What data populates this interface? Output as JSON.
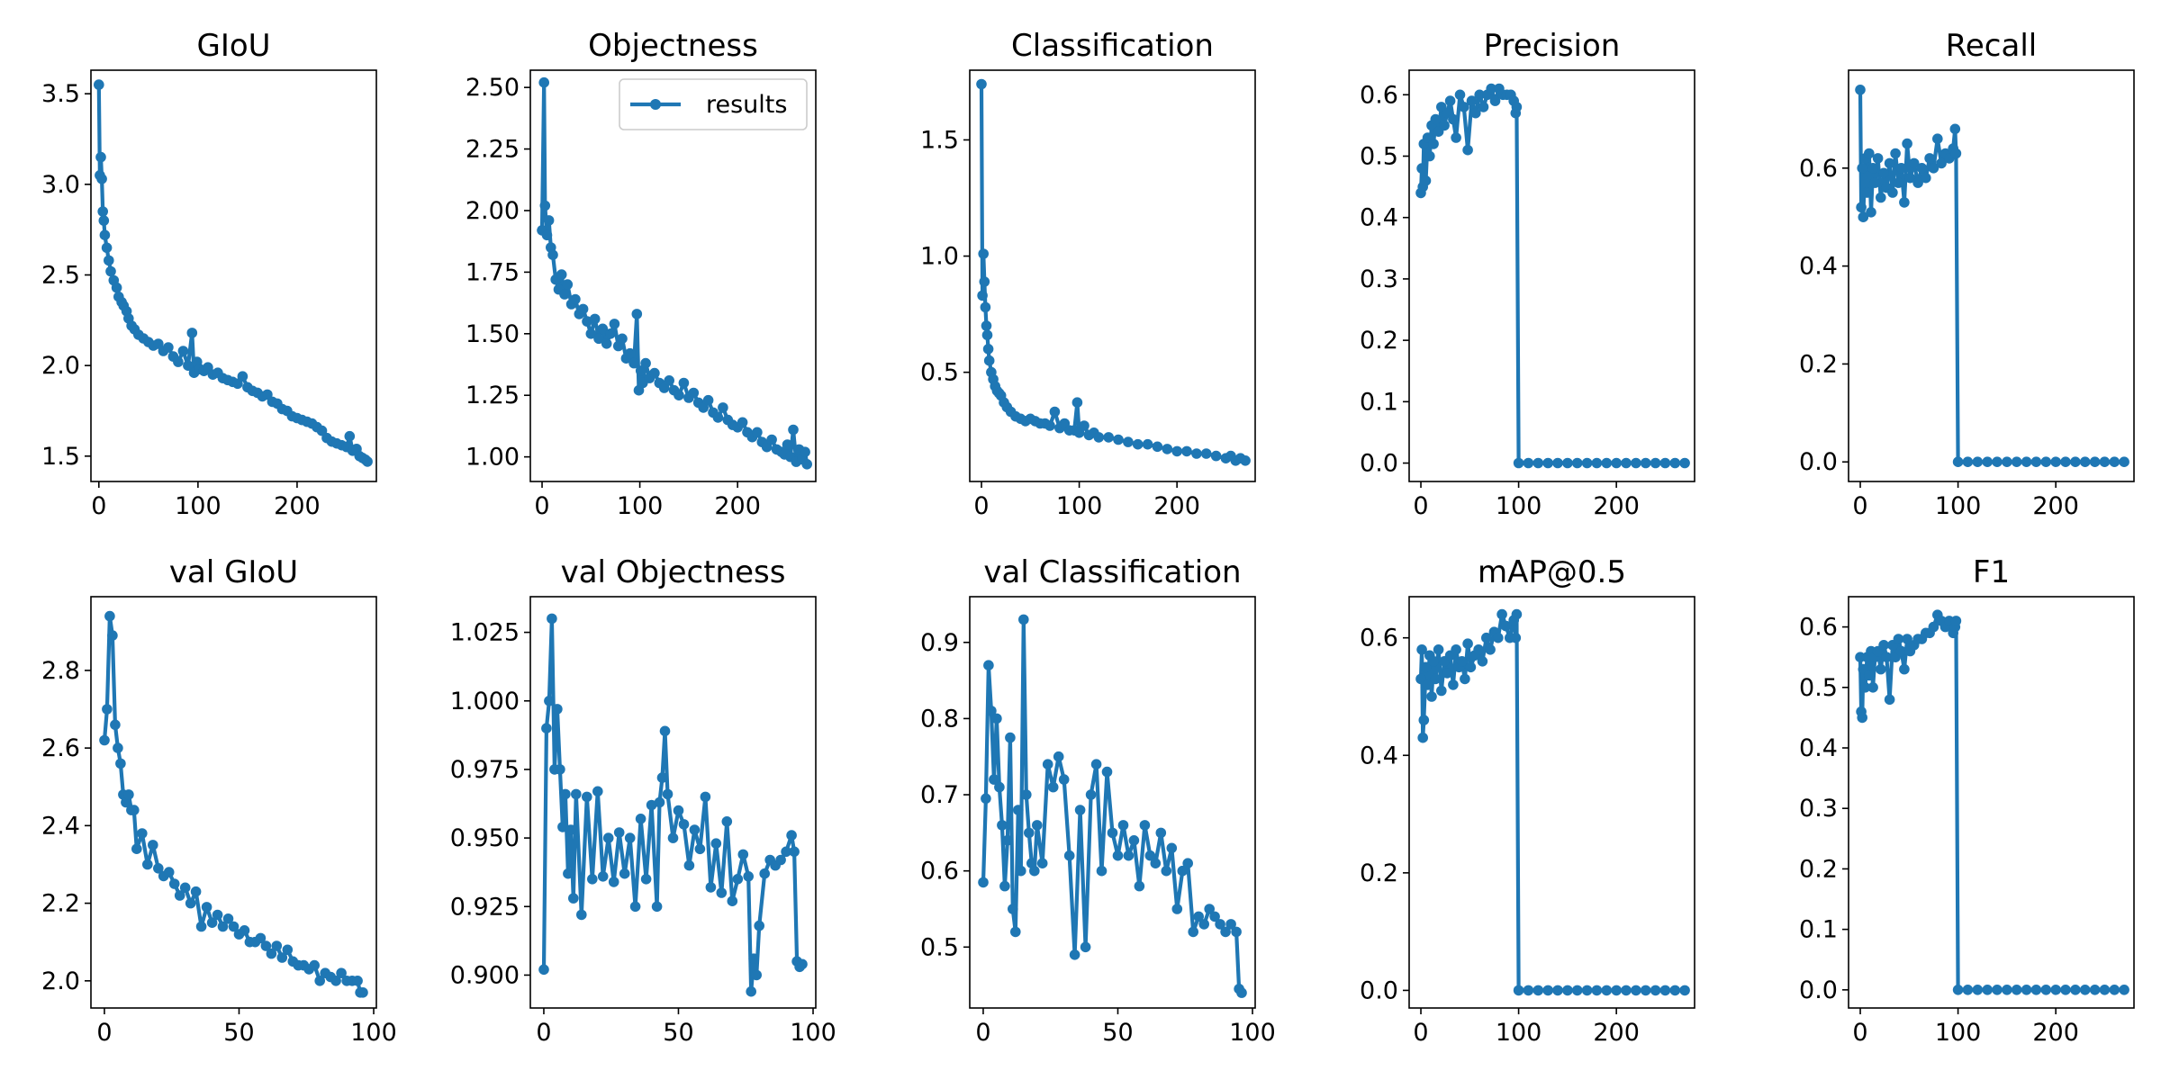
{
  "colors": {
    "series": "#1f77b4",
    "axes": "#000000",
    "legend_edge": "#cccccc"
  },
  "chart_data": [
    {
      "type": "line",
      "title": "GIoU",
      "series_name": "results",
      "xlim": [
        -8,
        280
      ],
      "ylim": [
        1.36,
        3.63
      ],
      "xticks": [
        0,
        100,
        200
      ],
      "yticks": [
        1.5,
        2.0,
        2.5,
        3.0,
        3.5
      ],
      "x": [
        0,
        1,
        2,
        3,
        4,
        5,
        6,
        8,
        10,
        12,
        15,
        18,
        20,
        23,
        25,
        28,
        30,
        33,
        36,
        40,
        45,
        50,
        55,
        60,
        65,
        70,
        75,
        80,
        85,
        90,
        94,
        96,
        99,
        102,
        106,
        110,
        115,
        120,
        125,
        130,
        135,
        140,
        145,
        150,
        155,
        160,
        165,
        170,
        175,
        180,
        185,
        190,
        195,
        200,
        205,
        210,
        215,
        220,
        225,
        230,
        235,
        240,
        245,
        250,
        253,
        256,
        260,
        263,
        266,
        269,
        271
      ],
      "values": [
        3.55,
        3.05,
        3.15,
        3.03,
        2.85,
        2.8,
        2.72,
        2.65,
        2.58,
        2.52,
        2.47,
        2.43,
        2.38,
        2.35,
        2.33,
        2.3,
        2.26,
        2.22,
        2.2,
        2.17,
        2.15,
        2.13,
        2.11,
        2.12,
        2.08,
        2.1,
        2.05,
        2.02,
        2.08,
        2.0,
        2.18,
        1.96,
        2.02,
        1.98,
        1.97,
        1.99,
        1.95,
        1.96,
        1.93,
        1.92,
        1.91,
        1.9,
        1.94,
        1.88,
        1.86,
        1.85,
        1.83,
        1.84,
        1.8,
        1.79,
        1.76,
        1.75,
        1.72,
        1.71,
        1.7,
        1.69,
        1.68,
        1.66,
        1.64,
        1.6,
        1.58,
        1.57,
        1.56,
        1.55,
        1.61,
        1.53,
        1.54,
        1.5,
        1.49,
        1.48,
        1.47
      ]
    },
    {
      "type": "line",
      "title": "Objectness",
      "series_name": "results",
      "xlim": [
        -12,
        280
      ],
      "ylim": [
        0.9,
        2.57
      ],
      "xticks": [
        0,
        100,
        200
      ],
      "yticks": [
        1.0,
        1.25,
        1.5,
        1.75,
        2.0,
        2.25,
        2.5
      ],
      "x": [
        0,
        2,
        3,
        5,
        7,
        9,
        11,
        14,
        17,
        20,
        23,
        26,
        30,
        34,
        38,
        42,
        46,
        50,
        54,
        58,
        62,
        66,
        70,
        74,
        78,
        82,
        86,
        90,
        94,
        97,
        99,
        101,
        103,
        106,
        110,
        115,
        120,
        125,
        130,
        135,
        140,
        145,
        150,
        155,
        160,
        165,
        170,
        175,
        180,
        185,
        190,
        195,
        200,
        205,
        210,
        215,
        220,
        225,
        230,
        235,
        240,
        245,
        248,
        251,
        254,
        257,
        260,
        263,
        266,
        269,
        271
      ],
      "values": [
        1.92,
        2.52,
        2.02,
        1.9,
        1.96,
        1.85,
        1.82,
        1.72,
        1.68,
        1.74,
        1.66,
        1.7,
        1.62,
        1.64,
        1.58,
        1.6,
        1.55,
        1.5,
        1.56,
        1.48,
        1.52,
        1.46,
        1.5,
        1.54,
        1.45,
        1.48,
        1.4,
        1.42,
        1.38,
        1.58,
        1.27,
        1.35,
        1.3,
        1.38,
        1.32,
        1.34,
        1.3,
        1.28,
        1.31,
        1.27,
        1.25,
        1.3,
        1.24,
        1.26,
        1.22,
        1.2,
        1.23,
        1.18,
        1.16,
        1.2,
        1.15,
        1.13,
        1.12,
        1.14,
        1.1,
        1.08,
        1.1,
        1.06,
        1.04,
        1.07,
        1.03,
        1.02,
        1.01,
        1.05,
        1.0,
        1.11,
        0.98,
        1.03,
        0.99,
        1.02,
        0.97
      ]
    },
    {
      "type": "line",
      "title": "Classification",
      "series_name": "results",
      "xlim": [
        -12,
        280
      ],
      "ylim": [
        0.03,
        1.8
      ],
      "xticks": [
        0,
        100,
        200
      ],
      "yticks": [
        0.5,
        1.0,
        1.5
      ],
      "x": [
        0,
        1,
        2,
        3,
        4,
        5,
        6,
        7,
        8,
        10,
        12,
        14,
        16,
        18,
        20,
        23,
        26,
        30,
        35,
        40,
        45,
        50,
        55,
        60,
        65,
        70,
        75,
        80,
        85,
        90,
        95,
        98,
        100,
        105,
        110,
        115,
        120,
        130,
        140,
        150,
        160,
        170,
        180,
        190,
        200,
        210,
        220,
        230,
        240,
        250,
        255,
        260,
        265,
        270
      ],
      "values": [
        1.74,
        0.83,
        1.01,
        0.89,
        0.78,
        0.7,
        0.66,
        0.6,
        0.55,
        0.5,
        0.47,
        0.44,
        0.42,
        0.41,
        0.4,
        0.37,
        0.35,
        0.33,
        0.31,
        0.3,
        0.29,
        0.3,
        0.29,
        0.28,
        0.28,
        0.27,
        0.33,
        0.26,
        0.28,
        0.25,
        0.25,
        0.37,
        0.24,
        0.27,
        0.23,
        0.24,
        0.22,
        0.22,
        0.21,
        0.2,
        0.19,
        0.19,
        0.18,
        0.17,
        0.16,
        0.16,
        0.15,
        0.15,
        0.14,
        0.13,
        0.14,
        0.12,
        0.13,
        0.12
      ]
    },
    {
      "type": "line",
      "title": "Precision",
      "series_name": "results",
      "xlim": [
        -12,
        280
      ],
      "ylim": [
        -0.03,
        0.64
      ],
      "xticks": [
        0,
        100,
        200
      ],
      "yticks": [
        0.0,
        0.1,
        0.2,
        0.3,
        0.4,
        0.5,
        0.6
      ],
      "x": [
        0,
        1,
        2,
        3,
        5,
        7,
        9,
        11,
        13,
        15,
        18,
        21,
        24,
        27,
        30,
        33,
        36,
        40,
        44,
        48,
        52,
        56,
        60,
        64,
        68,
        72,
        76,
        80,
        84,
        88,
        92,
        95,
        97,
        98,
        100,
        110,
        120,
        130,
        140,
        150,
        160,
        170,
        180,
        190,
        200,
        210,
        220,
        230,
        240,
        250,
        260,
        270
      ],
      "values": [
        0.44,
        0.48,
        0.45,
        0.52,
        0.46,
        0.53,
        0.5,
        0.55,
        0.52,
        0.56,
        0.54,
        0.58,
        0.55,
        0.57,
        0.59,
        0.56,
        0.53,
        0.6,
        0.58,
        0.51,
        0.59,
        0.57,
        0.6,
        0.58,
        0.6,
        0.61,
        0.59,
        0.61,
        0.6,
        0.6,
        0.6,
        0.59,
        0.57,
        0.58,
        0.0,
        0.0,
        0.0,
        0.0,
        0.0,
        0.0,
        0.0,
        0.0,
        0.0,
        0.0,
        0.0,
        0.0,
        0.0,
        0.0,
        0.0,
        0.0,
        0.0,
        0.0
      ]
    },
    {
      "type": "line",
      "title": "Recall",
      "series_name": "results",
      "xlim": [
        -12,
        280
      ],
      "ylim": [
        -0.04,
        0.8
      ],
      "xticks": [
        0,
        100,
        200
      ],
      "yticks": [
        0.0,
        0.2,
        0.4,
        0.6
      ],
      "x": [
        0,
        1,
        2,
        3,
        5,
        7,
        9,
        11,
        13,
        15,
        18,
        21,
        24,
        27,
        30,
        33,
        36,
        39,
        42,
        45,
        48,
        51,
        55,
        59,
        63,
        67,
        71,
        75,
        79,
        83,
        87,
        91,
        95,
        97,
        98,
        100,
        110,
        120,
        130,
        140,
        150,
        160,
        170,
        180,
        190,
        200,
        210,
        220,
        230,
        240,
        250,
        260,
        270
      ],
      "values": [
        0.76,
        0.52,
        0.6,
        0.5,
        0.62,
        0.55,
        0.63,
        0.51,
        0.6,
        0.57,
        0.62,
        0.54,
        0.59,
        0.56,
        0.61,
        0.55,
        0.63,
        0.57,
        0.6,
        0.53,
        0.65,
        0.58,
        0.61,
        0.57,
        0.6,
        0.58,
        0.62,
        0.6,
        0.66,
        0.61,
        0.63,
        0.62,
        0.64,
        0.68,
        0.63,
        0.0,
        0.0,
        0.0,
        0.0,
        0.0,
        0.0,
        0.0,
        0.0,
        0.0,
        0.0,
        0.0,
        0.0,
        0.0,
        0.0,
        0.0,
        0.0,
        0.0,
        0.0
      ]
    },
    {
      "type": "line",
      "title": "val GIoU",
      "series_name": "results",
      "xlim": [
        -5,
        101
      ],
      "ylim": [
        1.93,
        2.99
      ],
      "xticks": [
        0,
        50,
        100
      ],
      "yticks": [
        2.0,
        2.2,
        2.4,
        2.6,
        2.8
      ],
      "x": [
        0,
        1,
        2,
        3,
        4,
        5,
        6,
        7,
        8,
        9,
        10,
        11,
        12,
        14,
        16,
        18,
        20,
        22,
        24,
        26,
        28,
        30,
        32,
        34,
        36,
        38,
        40,
        42,
        44,
        46,
        48,
        50,
        52,
        54,
        56,
        58,
        60,
        62,
        64,
        66,
        68,
        70,
        72,
        74,
        76,
        78,
        80,
        82,
        84,
        86,
        88,
        90,
        92,
        94,
        95,
        96
      ],
      "values": [
        2.62,
        2.7,
        2.94,
        2.89,
        2.66,
        2.6,
        2.56,
        2.48,
        2.46,
        2.48,
        2.44,
        2.44,
        2.34,
        2.38,
        2.3,
        2.35,
        2.29,
        2.27,
        2.28,
        2.25,
        2.22,
        2.24,
        2.2,
        2.23,
        2.14,
        2.19,
        2.15,
        2.17,
        2.14,
        2.16,
        2.14,
        2.12,
        2.13,
        2.1,
        2.1,
        2.11,
        2.09,
        2.07,
        2.09,
        2.06,
        2.08,
        2.05,
        2.04,
        2.04,
        2.03,
        2.04,
        2.0,
        2.02,
        2.01,
        2.0,
        2.02,
        2.0,
        2.0,
        2.0,
        1.97,
        1.97
      ]
    },
    {
      "type": "line",
      "title": "val Objectness",
      "series_name": "results",
      "xlim": [
        -5,
        101
      ],
      "ylim": [
        0.888,
        1.038
      ],
      "xticks": [
        0,
        50,
        100
      ],
      "yticks": [
        0.9,
        0.925,
        0.95,
        0.975,
        1.0,
        1.025
      ],
      "x": [
        0,
        1,
        2,
        3,
        4,
        5,
        6,
        7,
        8,
        9,
        10,
        11,
        12,
        14,
        16,
        18,
        20,
        22,
        24,
        26,
        28,
        30,
        32,
        34,
        36,
        38,
        40,
        42,
        43,
        44,
        45,
        46,
        48,
        50,
        52,
        54,
        56,
        58,
        60,
        62,
        64,
        66,
        68,
        70,
        72,
        74,
        76,
        77,
        78,
        79,
        80,
        82,
        84,
        86,
        88,
        90,
        92,
        93,
        94,
        95,
        96
      ],
      "values": [
        0.902,
        0.99,
        1.0,
        1.03,
        0.975,
        0.997,
        0.975,
        0.954,
        0.966,
        0.937,
        0.953,
        0.928,
        0.966,
        0.922,
        0.965,
        0.935,
        0.967,
        0.936,
        0.95,
        0.934,
        0.952,
        0.937,
        0.95,
        0.925,
        0.957,
        0.935,
        0.962,
        0.925,
        0.963,
        0.972,
        0.989,
        0.966,
        0.95,
        0.96,
        0.955,
        0.94,
        0.953,
        0.946,
        0.965,
        0.932,
        0.948,
        0.93,
        0.956,
        0.927,
        0.935,
        0.944,
        0.936,
        0.894,
        0.906,
        0.9,
        0.918,
        0.937,
        0.942,
        0.94,
        0.942,
        0.945,
        0.951,
        0.945,
        0.905,
        0.903,
        0.904
      ]
    },
    {
      "type": "line",
      "title": "val Classification",
      "series_name": "results",
      "xlim": [
        -5,
        101
      ],
      "ylim": [
        0.42,
        0.96
      ],
      "xticks": [
        0,
        50,
        100
      ],
      "yticks": [
        0.5,
        0.6,
        0.7,
        0.8,
        0.9
      ],
      "x": [
        0,
        1,
        2,
        3,
        4,
        5,
        6,
        7,
        8,
        9,
        10,
        11,
        12,
        13,
        14,
        15,
        16,
        17,
        18,
        19,
        20,
        22,
        24,
        26,
        28,
        30,
        32,
        34,
        36,
        38,
        40,
        42,
        44,
        46,
        48,
        50,
        52,
        54,
        56,
        58,
        60,
        62,
        64,
        66,
        68,
        70,
        72,
        74,
        76,
        78,
        80,
        82,
        84,
        86,
        88,
        90,
        92,
        94,
        95,
        96
      ],
      "values": [
        0.585,
        0.695,
        0.87,
        0.81,
        0.72,
        0.8,
        0.71,
        0.66,
        0.58,
        0.64,
        0.775,
        0.55,
        0.52,
        0.68,
        0.6,
        0.93,
        0.7,
        0.65,
        0.61,
        0.6,
        0.66,
        0.61,
        0.74,
        0.71,
        0.75,
        0.72,
        0.62,
        0.49,
        0.68,
        0.5,
        0.7,
        0.74,
        0.6,
        0.73,
        0.65,
        0.62,
        0.66,
        0.62,
        0.64,
        0.58,
        0.66,
        0.62,
        0.61,
        0.65,
        0.6,
        0.63,
        0.55,
        0.6,
        0.61,
        0.52,
        0.54,
        0.53,
        0.55,
        0.54,
        0.53,
        0.52,
        0.53,
        0.52,
        0.445,
        0.44
      ]
    },
    {
      "type": "line",
      "title": "mAP@0.5",
      "series_name": "results",
      "xlim": [
        -12,
        280
      ],
      "ylim": [
        -0.03,
        0.67
      ],
      "xticks": [
        0,
        100,
        200
      ],
      "yticks": [
        0.0,
        0.2,
        0.4,
        0.6
      ],
      "x": [
        0,
        1,
        2,
        3,
        5,
        7,
        9,
        11,
        13,
        15,
        18,
        21,
        24,
        27,
        30,
        33,
        36,
        39,
        42,
        45,
        48,
        51,
        55,
        59,
        63,
        67,
        71,
        75,
        79,
        83,
        87,
        91,
        95,
        97,
        98,
        100,
        110,
        120,
        130,
        140,
        150,
        160,
        170,
        180,
        190,
        200,
        210,
        220,
        230,
        240,
        250,
        260,
        270
      ],
      "values": [
        0.53,
        0.58,
        0.43,
        0.46,
        0.55,
        0.52,
        0.57,
        0.5,
        0.56,
        0.53,
        0.58,
        0.51,
        0.56,
        0.54,
        0.57,
        0.52,
        0.58,
        0.55,
        0.56,
        0.53,
        0.59,
        0.55,
        0.57,
        0.58,
        0.56,
        0.6,
        0.58,
        0.61,
        0.6,
        0.64,
        0.62,
        0.6,
        0.63,
        0.6,
        0.64,
        0.0,
        0.0,
        0.0,
        0.0,
        0.0,
        0.0,
        0.0,
        0.0,
        0.0,
        0.0,
        0.0,
        0.0,
        0.0,
        0.0,
        0.0,
        0.0,
        0.0,
        0.0
      ]
    },
    {
      "type": "line",
      "title": "F1",
      "series_name": "results",
      "xlim": [
        -12,
        280
      ],
      "ylim": [
        -0.03,
        0.65
      ],
      "xticks": [
        0,
        100,
        200
      ],
      "yticks": [
        0.0,
        0.1,
        0.2,
        0.3,
        0.4,
        0.5,
        0.6
      ],
      "x": [
        0,
        1,
        2,
        3,
        5,
        7,
        9,
        11,
        13,
        15,
        18,
        21,
        24,
        27,
        30,
        33,
        36,
        39,
        42,
        45,
        48,
        51,
        55,
        59,
        63,
        67,
        71,
        75,
        79,
        83,
        87,
        91,
        95,
        97,
        98,
        100,
        110,
        120,
        130,
        140,
        150,
        160,
        170,
        180,
        190,
        200,
        210,
        220,
        230,
        240,
        250,
        260,
        270
      ],
      "values": [
        0.55,
        0.46,
        0.45,
        0.53,
        0.5,
        0.55,
        0.52,
        0.56,
        0.5,
        0.55,
        0.56,
        0.53,
        0.57,
        0.55,
        0.48,
        0.57,
        0.55,
        0.58,
        0.56,
        0.53,
        0.58,
        0.56,
        0.57,
        0.58,
        0.58,
        0.59,
        0.59,
        0.6,
        0.62,
        0.61,
        0.6,
        0.61,
        0.59,
        0.6,
        0.61,
        0.0,
        0.0,
        0.0,
        0.0,
        0.0,
        0.0,
        0.0,
        0.0,
        0.0,
        0.0,
        0.0,
        0.0,
        0.0,
        0.0,
        0.0,
        0.0,
        0.0,
        0.0
      ]
    }
  ],
  "legend": {
    "panel": 1,
    "placement": "upper-right",
    "label": "results"
  }
}
